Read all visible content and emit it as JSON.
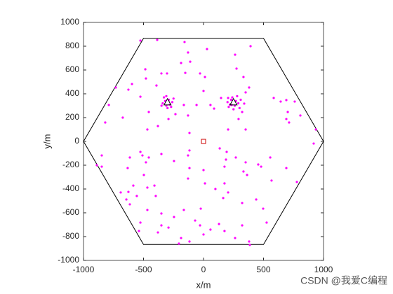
{
  "chart_data": {
    "type": "scatter",
    "xlabel": "x/m",
    "ylabel": "y/m",
    "xlim": [
      -1000,
      1000
    ],
    "ylim": [
      -1000,
      1000
    ],
    "xticks": [
      -1000,
      -500,
      0,
      500,
      1000
    ],
    "yticks": [
      -1000,
      -800,
      -600,
      -400,
      -200,
      0,
      200,
      400,
      600,
      800,
      1000
    ],
    "series": [
      {
        "marker": "line",
        "color": "#000000",
        "x": [
          -1000,
          -500,
          500,
          1000,
          500,
          -500,
          -1000
        ],
        "values": [
          0,
          866,
          866,
          0,
          -866,
          -866,
          0
        ]
      },
      {
        "marker": "dot",
        "color": "#ff00ff",
        "x": [
          -526,
          -386,
          -158,
          -129,
          29,
          263,
          392,
          -111,
          -187,
          -152,
          -485,
          -480,
          -351,
          -304,
          -29,
          -392,
          12,
          275,
          333,
          -596,
          -626,
          -731,
          -789,
          -819,
          -673,
          -526,
          -456,
          -468,
          -380,
          -292,
          -234,
          -164,
          -129,
          -58,
          0,
          58,
          88,
          146,
          205,
          234,
          339,
          351,
          380,
          322,
          292,
          205,
          351,
          585,
          643,
          690,
          760,
          807,
          702,
          690,
          713,
          936,
          918,
          -117,
          -320,
          -290,
          -280,
          -310,
          -340,
          -260,
          -300,
          -330,
          -270,
          -350,
          -250,
          -310,
          230,
          270,
          260,
          220,
          290,
          240,
          300,
          200,
          280,
          250,
          310,
          210,
          -848,
          -848,
          -889,
          -614,
          -632,
          -526,
          -509,
          -480,
          -456,
          -351,
          -246,
          -129,
          -117,
          -129,
          -117,
          135,
          193,
          187,
          269,
          351,
          333,
          363,
          456,
          480,
          556,
          567,
          690,
          778,
          -497,
          -585,
          -690,
          -626,
          -643,
          -614,
          -556,
          -409,
          -398,
          -468,
          -351,
          -351,
          -380,
          -538,
          -526,
          -246,
          -164,
          -70,
          -23,
          164,
          205,
          175,
          99,
          12,
          -29,
          0,
          58,
          129,
          175,
          263,
          322,
          380,
          386,
          526,
          497,
          439,
          322,
          -187,
          -117,
          -205,
          -292,
          175,
          0,
          -468
        ],
        "values": [
          847,
          853,
          835,
          747,
          776,
          729,
          800,
          670,
          659,
          576,
          606,
          529,
          571,
          571,
          571,
          470,
          541,
          612,
          541,
          482,
          435,
          453,
          306,
          159,
          200,
          376,
          247,
          100,
          129,
          188,
          229,
          306,
          218,
          306,
          424,
          306,
          276,
          365,
          365,
          306,
          318,
          412,
          453,
          247,
          188,
          100,
          100,
          365,
          335,
          347,
          335,
          218,
          247,
          188,
          159,
          100,
          -18,
          71,
          340,
          350,
          310,
          300,
          320,
          330,
          280,
          370,
          290,
          300,
          360,
          380,
          350,
          340,
          300,
          310,
          320,
          370,
          280,
          330,
          380,
          270,
          350,
          290,
          -118,
          -212,
          -200,
          -135,
          -224,
          -88,
          -118,
          -176,
          -135,
          -106,
          -165,
          -118,
          -224,
          -312,
          -76,
          -59,
          -88,
          -153,
          -135,
          -176,
          -253,
          -282,
          -194,
          -212,
          -135,
          -329,
          -224,
          -341,
          -282,
          -371,
          -429,
          -424,
          -488,
          -529,
          -459,
          -371,
          -459,
          -576,
          -606,
          -706,
          -765,
          -753,
          -682,
          -635,
          -576,
          -665,
          -565,
          -476,
          -429,
          -353,
          -400,
          -353,
          -706,
          -782,
          -741,
          -694,
          -753,
          -812,
          -706,
          -841,
          -870,
          -682,
          -565,
          -488,
          -518,
          -812,
          -841,
          -859,
          -724,
          -212,
          -241,
          -388
        ]
      },
      {
        "marker": "triangle",
        "color": "#000000",
        "x": [
          -300,
          250
        ],
        "values": [
          330,
          330
        ]
      },
      {
        "marker": "square",
        "color": "#cc0000",
        "x": [
          0
        ],
        "values": [
          0
        ]
      }
    ]
  },
  "watermark": "CSDN @我爱C编程"
}
